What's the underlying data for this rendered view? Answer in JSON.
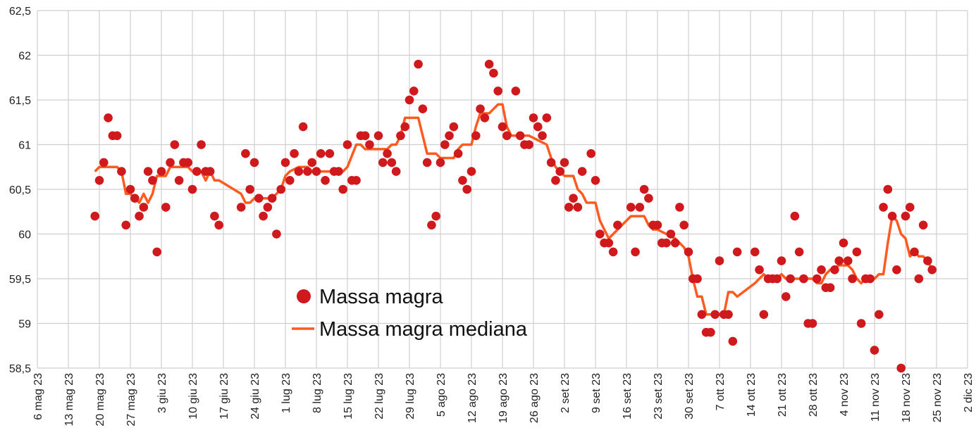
{
  "chart_data": {
    "type": "scatter",
    "title": "",
    "xlabel": "",
    "ylabel": "",
    "ylim": [
      58.5,
      62.5
    ],
    "yticks": [
      "58,5",
      "59",
      "59,5",
      "60",
      "60,5",
      "61",
      "61,5",
      "62",
      "62,5"
    ],
    "x_unit": "days since 6 mag 23",
    "xlim": [
      0,
      210
    ],
    "xticks": [
      "6 mag 23",
      "13 mag 23",
      "20 mag 23",
      "27 mag 23",
      "3 giu 23",
      "10 giu 23",
      "17 giu 23",
      "24 giu 23",
      "1 lug 23",
      "8 lug 23",
      "15 lug 23",
      "22 lug 23",
      "29 lug 23",
      "5 ago 23",
      "12 ago 23",
      "19 ago 23",
      "26 ago 23",
      "2 set 23",
      "9 set 23",
      "16 set 23",
      "23 set 23",
      "30 set 23",
      "7 ott 23",
      "14 ott 23",
      "21 ott 23",
      "28 ott 23",
      "4 nov 23",
      "11 nov 23",
      "18 nov 23",
      "25 nov 23",
      "2 dic 23"
    ],
    "grid": true,
    "legend_position": "lower-left-center",
    "colors": {
      "points": "#d0191c",
      "median": "#ff5a1f",
      "grid": "#cfcfcf"
    },
    "series": [
      {
        "name": "Massa magra",
        "kind": "scatter",
        "points": [
          [
            13,
            60.2
          ],
          [
            14,
            60.6
          ],
          [
            15,
            60.8
          ],
          [
            16,
            61.3
          ],
          [
            17,
            61.1
          ],
          [
            18,
            61.1
          ],
          [
            19,
            60.7
          ],
          [
            20,
            60.1
          ],
          [
            21,
            60.5
          ],
          [
            22,
            60.4
          ],
          [
            23,
            60.2
          ],
          [
            24,
            60.3
          ],
          [
            25,
            60.7
          ],
          [
            26,
            60.6
          ],
          [
            27,
            59.8
          ],
          [
            28,
            60.7
          ],
          [
            29,
            60.3
          ],
          [
            30,
            60.8
          ],
          [
            31,
            61.0
          ],
          [
            32,
            60.6
          ],
          [
            33,
            60.8
          ],
          [
            34,
            60.8
          ],
          [
            35,
            60.5
          ],
          [
            36,
            60.7
          ],
          [
            37,
            61.0
          ],
          [
            38,
            60.7
          ],
          [
            39,
            60.7
          ],
          [
            40,
            60.2
          ],
          [
            41,
            60.1
          ],
          [
            46,
            60.3
          ],
          [
            47,
            60.9
          ],
          [
            48,
            60.5
          ],
          [
            49,
            60.8
          ],
          [
            50,
            60.4
          ],
          [
            51,
            60.2
          ],
          [
            52,
            60.3
          ],
          [
            53,
            60.4
          ],
          [
            54,
            60.0
          ],
          [
            55,
            60.5
          ],
          [
            56,
            60.8
          ],
          [
            57,
            60.6
          ],
          [
            58,
            60.9
          ],
          [
            59,
            60.7
          ],
          [
            60,
            61.2
          ],
          [
            61,
            60.7
          ],
          [
            62,
            60.8
          ],
          [
            63,
            60.7
          ],
          [
            64,
            60.9
          ],
          [
            65,
            60.6
          ],
          [
            66,
            60.9
          ],
          [
            67,
            60.7
          ],
          [
            68,
            60.7
          ],
          [
            69,
            60.5
          ],
          [
            70,
            61.0
          ],
          [
            71,
            60.6
          ],
          [
            72,
            60.6
          ],
          [
            73,
            61.1
          ],
          [
            74,
            61.1
          ],
          [
            75,
            61.0
          ],
          [
            77,
            61.1
          ],
          [
            78,
            60.8
          ],
          [
            79,
            60.9
          ],
          [
            80,
            60.8
          ],
          [
            81,
            60.7
          ],
          [
            82,
            61.1
          ],
          [
            83,
            61.2
          ],
          [
            84,
            61.5
          ],
          [
            85,
            61.6
          ],
          [
            86,
            61.9
          ],
          [
            87,
            61.4
          ],
          [
            88,
            60.8
          ],
          [
            89,
            60.1
          ],
          [
            90,
            60.2
          ],
          [
            91,
            60.8
          ],
          [
            92,
            61.0
          ],
          [
            93,
            61.1
          ],
          [
            94,
            61.2
          ],
          [
            95,
            60.9
          ],
          [
            96,
            60.6
          ],
          [
            97,
            60.5
          ],
          [
            98,
            60.7
          ],
          [
            99,
            61.1
          ],
          [
            100,
            61.4
          ],
          [
            101,
            61.3
          ],
          [
            102,
            61.9
          ],
          [
            103,
            61.8
          ],
          [
            104,
            61.6
          ],
          [
            105,
            61.2
          ],
          [
            106,
            61.1
          ],
          [
            108,
            61.6
          ],
          [
            109,
            61.1
          ],
          [
            110,
            61.0
          ],
          [
            111,
            61.0
          ],
          [
            112,
            61.3
          ],
          [
            113,
            61.2
          ],
          [
            114,
            61.1
          ],
          [
            115,
            61.3
          ],
          [
            116,
            60.8
          ],
          [
            117,
            60.6
          ],
          [
            118,
            60.7
          ],
          [
            119,
            60.8
          ],
          [
            120,
            60.3
          ],
          [
            121,
            60.4
          ],
          [
            122,
            60.3
          ],
          [
            123,
            60.7
          ],
          [
            125,
            60.9
          ],
          [
            126,
            60.6
          ],
          [
            127,
            60.0
          ],
          [
            128,
            59.9
          ],
          [
            129,
            59.9
          ],
          [
            130,
            59.8
          ],
          [
            131,
            60.1
          ],
          [
            134,
            60.3
          ],
          [
            135,
            59.8
          ],
          [
            136,
            60.3
          ],
          [
            137,
            60.5
          ],
          [
            138,
            60.4
          ],
          [
            139,
            60.1
          ],
          [
            140,
            60.1
          ],
          [
            141,
            59.9
          ],
          [
            142,
            59.9
          ],
          [
            143,
            60.0
          ],
          [
            144,
            59.9
          ],
          [
            145,
            60.3
          ],
          [
            146,
            60.1
          ],
          [
            147,
            59.8
          ],
          [
            148,
            59.5
          ],
          [
            149,
            59.5
          ],
          [
            150,
            59.1
          ],
          [
            151,
            58.9
          ],
          [
            152,
            58.9
          ],
          [
            153,
            59.1
          ],
          [
            154,
            59.7
          ],
          [
            155,
            59.1
          ],
          [
            156,
            59.1
          ],
          [
            157,
            58.8
          ],
          [
            158,
            59.8
          ],
          [
            162,
            59.8
          ],
          [
            163,
            59.6
          ],
          [
            164,
            59.1
          ],
          [
            165,
            59.5
          ],
          [
            166,
            59.5
          ],
          [
            167,
            59.5
          ],
          [
            168,
            59.7
          ],
          [
            169,
            59.3
          ],
          [
            170,
            59.5
          ],
          [
            171,
            60.2
          ],
          [
            172,
            59.8
          ],
          [
            173,
            59.5
          ],
          [
            174,
            59.0
          ],
          [
            175,
            59.0
          ],
          [
            176,
            59.5
          ],
          [
            177,
            59.6
          ],
          [
            178,
            59.4
          ],
          [
            179,
            59.4
          ],
          [
            180,
            59.6
          ],
          [
            181,
            59.7
          ],
          [
            182,
            59.9
          ],
          [
            183,
            59.7
          ],
          [
            184,
            59.5
          ],
          [
            185,
            59.8
          ],
          [
            186,
            59.0
          ],
          [
            187,
            59.5
          ],
          [
            188,
            59.5
          ],
          [
            189,
            58.7
          ],
          [
            190,
            59.1
          ],
          [
            191,
            60.3
          ],
          [
            192,
            60.5
          ],
          [
            193,
            60.2
          ],
          [
            194,
            59.6
          ],
          [
            195,
            58.5
          ],
          [
            196,
            60.2
          ],
          [
            197,
            60.3
          ],
          [
            198,
            59.8
          ],
          [
            199,
            59.5
          ],
          [
            200,
            60.1
          ],
          [
            201,
            59.7
          ],
          [
            202,
            59.6
          ]
        ]
      },
      {
        "name": "Massa magra mediana",
        "kind": "line",
        "points": [
          [
            13,
            60.7
          ],
          [
            14,
            60.75
          ],
          [
            18,
            60.75
          ],
          [
            19,
            60.7
          ],
          [
            20,
            60.45
          ],
          [
            21,
            60.45
          ],
          [
            22,
            60.4
          ],
          [
            23,
            60.35
          ],
          [
            24,
            60.45
          ],
          [
            25,
            60.35
          ],
          [
            26,
            60.45
          ],
          [
            27,
            60.65
          ],
          [
            29,
            60.65
          ],
          [
            30,
            60.75
          ],
          [
            34,
            60.75
          ],
          [
            35,
            60.7
          ],
          [
            37,
            60.7
          ],
          [
            38,
            60.6
          ],
          [
            39,
            60.7
          ],
          [
            40,
            60.6
          ],
          [
            41,
            60.6
          ],
          [
            46,
            60.45
          ],
          [
            47,
            60.35
          ],
          [
            48,
            60.35
          ],
          [
            49,
            60.4
          ],
          [
            53,
            60.4
          ],
          [
            55,
            60.5
          ],
          [
            56,
            60.65
          ],
          [
            57,
            60.7
          ],
          [
            59,
            60.75
          ],
          [
            61,
            60.75
          ],
          [
            62,
            60.7
          ],
          [
            65,
            60.7
          ],
          [
            69,
            60.7
          ],
          [
            70,
            60.75
          ],
          [
            72,
            61.0
          ],
          [
            73,
            61.0
          ],
          [
            74,
            60.95
          ],
          [
            79,
            60.95
          ],
          [
            80,
            61.0
          ],
          [
            81,
            61.0
          ],
          [
            82,
            61.1
          ],
          [
            83,
            61.3
          ],
          [
            86,
            61.3
          ],
          [
            87,
            61.1
          ],
          [
            88,
            60.9
          ],
          [
            90,
            60.9
          ],
          [
            91,
            60.85
          ],
          [
            94,
            60.85
          ],
          [
            95,
            60.95
          ],
          [
            96,
            61.0
          ],
          [
            98,
            61.0
          ],
          [
            99,
            61.2
          ],
          [
            100,
            61.35
          ],
          [
            102,
            61.35
          ],
          [
            103,
            61.4
          ],
          [
            104,
            61.45
          ],
          [
            105,
            61.45
          ],
          [
            106,
            61.2
          ],
          [
            107,
            61.1
          ],
          [
            111,
            61.1
          ],
          [
            113,
            61.05
          ],
          [
            115,
            61.0
          ],
          [
            116,
            60.85
          ],
          [
            117,
            60.75
          ],
          [
            118,
            60.7
          ],
          [
            119,
            60.65
          ],
          [
            121,
            60.65
          ],
          [
            122,
            60.5
          ],
          [
            123,
            60.45
          ],
          [
            124,
            60.35
          ],
          [
            126,
            60.35
          ],
          [
            127,
            60.15
          ],
          [
            128,
            60.05
          ],
          [
            129,
            59.95
          ],
          [
            130,
            60.0
          ],
          [
            131,
            60.05
          ],
          [
            133,
            60.15
          ],
          [
            134,
            60.2
          ],
          [
            137,
            60.2
          ],
          [
            138,
            60.1
          ],
          [
            139,
            60.05
          ],
          [
            140,
            60.05
          ],
          [
            142,
            60.0
          ],
          [
            144,
            59.95
          ],
          [
            145,
            59.9
          ],
          [
            146,
            59.85
          ],
          [
            147,
            59.75
          ],
          [
            148,
            59.5
          ],
          [
            149,
            59.3
          ],
          [
            150,
            59.3
          ],
          [
            151,
            59.1
          ],
          [
            155,
            59.1
          ],
          [
            156,
            59.35
          ],
          [
            157,
            59.35
          ],
          [
            158,
            59.3
          ],
          [
            162,
            59.45
          ],
          [
            163,
            59.5
          ],
          [
            164,
            59.55
          ],
          [
            165,
            59.5
          ],
          [
            167,
            59.5
          ],
          [
            168,
            59.55
          ],
          [
            169,
            59.5
          ],
          [
            175,
            59.5
          ],
          [
            176,
            59.45
          ],
          [
            177,
            59.45
          ],
          [
            178,
            59.55
          ],
          [
            179,
            59.6
          ],
          [
            181,
            59.65
          ],
          [
            183,
            59.65
          ],
          [
            184,
            59.6
          ],
          [
            185,
            59.5
          ],
          [
            186,
            59.45
          ],
          [
            187,
            59.5
          ],
          [
            189,
            59.5
          ],
          [
            190,
            59.55
          ],
          [
            191,
            59.55
          ],
          [
            192,
            59.9
          ],
          [
            193,
            60.2
          ],
          [
            194,
            60.15
          ],
          [
            195,
            60.0
          ],
          [
            196,
            59.95
          ],
          [
            197,
            59.75
          ],
          [
            198,
            59.8
          ],
          [
            199,
            59.75
          ],
          [
            200,
            59.75
          ],
          [
            201,
            59.7
          ],
          [
            202,
            59.6
          ]
        ]
      }
    ]
  }
}
